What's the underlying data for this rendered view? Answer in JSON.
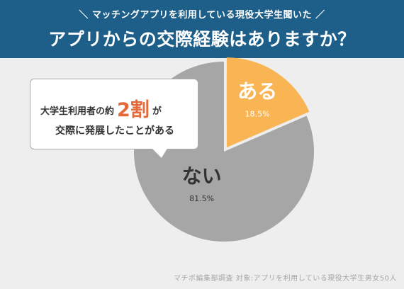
{
  "header": {
    "subtitle": "＼ マッチングアプリを利用している現役大学生聞いた ／",
    "title": "アプリからの交際経験はありますか？"
  },
  "chart_data": {
    "type": "pie",
    "categories": [
      "ある",
      "ない"
    ],
    "values": [
      18.5,
      81.5
    ],
    "value_labels": [
      "18.5%",
      "81.5%"
    ],
    "colors": [
      "#f9b553",
      "#a6a6a6"
    ],
    "label_colors": [
      "#ffffff",
      "#333333"
    ],
    "value_label_colors": [
      "#ffffff",
      "#333333"
    ]
  },
  "callout": {
    "prefix": "大学生利用者の約",
    "highlight": "2割",
    "suffix": "が",
    "line2": "交際に発展したことがある",
    "highlight_color": "#e46a3a"
  },
  "footer": {
    "note": "マチボ編集部調査 対象:アプリを利用している現役大学生男女50人"
  }
}
